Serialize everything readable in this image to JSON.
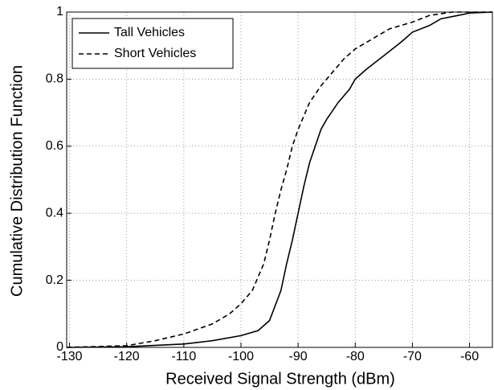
{
  "chart_data": {
    "type": "line",
    "x_label": "Received Signal Strength (dBm)",
    "y_label": "Cumulative Distribution Function",
    "xlim": [
      -130.5,
      -56
    ],
    "ylim": [
      0,
      1
    ],
    "xticks": [
      -130,
      -120,
      -110,
      -100,
      -90,
      -80,
      -70,
      -60
    ],
    "yticks": [
      0,
      0.2,
      0.4,
      0.6,
      0.8,
      1
    ],
    "grid": true,
    "legend": "upper left",
    "series": [
      {
        "name": "Tall Vehicles",
        "color": "#000000",
        "style": "solid",
        "x": [
          -130.5,
          -120,
          -110,
          -105,
          -100,
          -97,
          -95,
          -93,
          -92,
          -91,
          -90,
          -89,
          -88,
          -87,
          -86,
          -85,
          -83,
          -81,
          -80,
          -78,
          -75,
          -72,
          -70,
          -67,
          -65,
          -62,
          -60,
          -56
        ],
        "values": [
          0,
          0.002,
          0.01,
          0.02,
          0.035,
          0.05,
          0.08,
          0.17,
          0.25,
          0.32,
          0.4,
          0.48,
          0.55,
          0.6,
          0.65,
          0.68,
          0.73,
          0.77,
          0.8,
          0.83,
          0.87,
          0.91,
          0.94,
          0.96,
          0.98,
          0.99,
          0.997,
          1
        ]
      },
      {
        "name": "Short Vehicles",
        "color": "#000000",
        "style": "dashed",
        "x": [
          -130.5,
          -120,
          -115,
          -110,
          -105,
          -102,
          -100,
          -98,
          -96,
          -95,
          -94,
          -93,
          -92,
          -91,
          -90,
          -89,
          -88,
          -86,
          -84,
          -82,
          -80,
          -77,
          -74,
          -70,
          -67,
          -63,
          -56
        ],
        "values": [
          0,
          0.005,
          0.02,
          0.04,
          0.07,
          0.1,
          0.13,
          0.17,
          0.25,
          0.32,
          0.4,
          0.47,
          0.53,
          0.6,
          0.65,
          0.69,
          0.73,
          0.78,
          0.82,
          0.86,
          0.89,
          0.92,
          0.95,
          0.97,
          0.99,
          1,
          1
        ]
      }
    ]
  }
}
